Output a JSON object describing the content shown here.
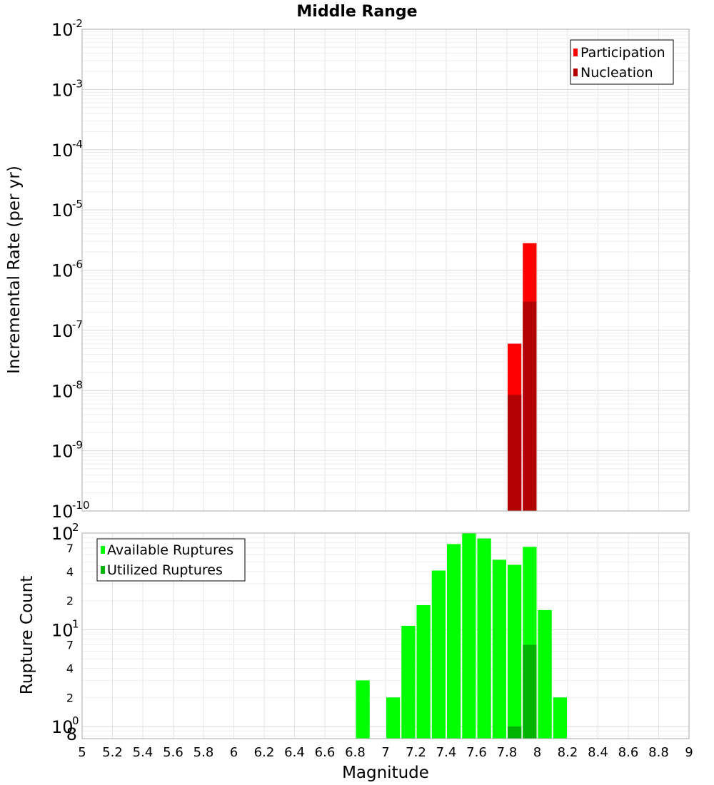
{
  "chart_data": [
    {
      "type": "bar",
      "title": "Middle Range",
      "xlabel": "",
      "ylabel": "Incremental Rate (per yr)",
      "xlim": [
        5,
        9
      ],
      "ylim": [
        1e-10,
        0.01
      ],
      "y_scale": "log",
      "grid": true,
      "bar_width": 0.1,
      "legend_position": "top-right",
      "y_ticks": [
        {
          "base": "10",
          "exp": "-2"
        },
        {
          "base": "10",
          "exp": "-3"
        },
        {
          "base": "10",
          "exp": "-4"
        },
        {
          "base": "10",
          "exp": "-5"
        },
        {
          "base": "10",
          "exp": "-6"
        },
        {
          "base": "10",
          "exp": "-7"
        },
        {
          "base": "10",
          "exp": "-8"
        },
        {
          "base": "10",
          "exp": "-9"
        },
        {
          "base": "10",
          "exp": "-10"
        }
      ],
      "series": [
        {
          "name": "Participation",
          "color": "#ff0000",
          "x": [
            7.85,
            7.95
          ],
          "values": [
            6e-08,
            2.8e-06
          ]
        },
        {
          "name": "Nucleation",
          "color": "#b30000",
          "x": [
            7.85,
            7.95
          ],
          "values": [
            8.5e-09,
            3e-07
          ]
        }
      ]
    },
    {
      "type": "bar",
      "xlabel": "Magnitude",
      "ylabel": "Rupture Count",
      "xlim": [
        5,
        9
      ],
      "ylim": [
        0.75,
        100
      ],
      "y_scale": "log",
      "grid": true,
      "bar_width": 0.1,
      "legend_position": "top-left",
      "x_ticks": [
        "5",
        "5.2",
        "5.4",
        "5.6",
        "5.8",
        "6",
        "6.2",
        "6.4",
        "6.6",
        "6.8",
        "7",
        "7.2",
        "7.4",
        "7.6",
        "7.8",
        "8",
        "8.2",
        "8.4",
        "8.6",
        "8.8",
        "9"
      ],
      "y_ticks": [
        {
          "base": "10",
          "exp": "2"
        },
        {
          "base": "10",
          "exp": "1"
        },
        {
          "base": "10",
          "exp": "0"
        }
      ],
      "y_minor_labels": [
        "7",
        "4",
        "2",
        "7",
        "4",
        "2",
        "8"
      ],
      "series": [
        {
          "name": "Available Ruptures",
          "color": "#00ff00",
          "x": [
            6.85,
            7.05,
            7.15,
            7.25,
            7.35,
            7.45,
            7.55,
            7.65,
            7.75,
            7.85,
            7.95,
            8.05,
            8.15
          ],
          "values": [
            3,
            2,
            11,
            18,
            41,
            77,
            100,
            88,
            53,
            47,
            72,
            16,
            2
          ]
        },
        {
          "name": "Utilized Ruptures",
          "color": "#00b300",
          "x": [
            7.85,
            7.95
          ],
          "values": [
            1,
            7
          ]
        }
      ]
    }
  ]
}
